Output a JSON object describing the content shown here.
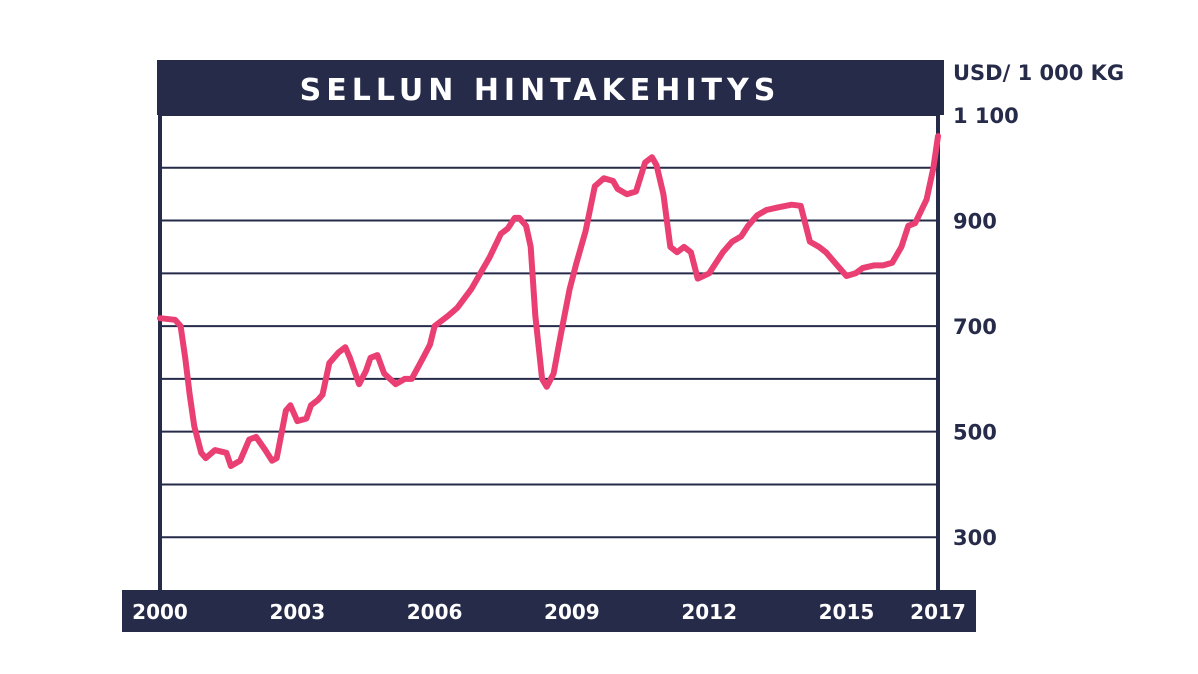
{
  "chart_data": {
    "type": "line",
    "title": "SELLUN HINTAKEHITYS",
    "ylabel": "USD/ 1 000 KG",
    "xlabel": "",
    "xlim": [
      2000,
      2017
    ],
    "ylim": [
      200,
      1100
    ],
    "y_gridlines": [
      300,
      400,
      500,
      600,
      700,
      800,
      900,
      1000,
      1100
    ],
    "y_tick_labels": [
      {
        "value": 1100,
        "label": "1 100"
      },
      {
        "value": 900,
        "label": "900"
      },
      {
        "value": 700,
        "label": "700"
      },
      {
        "value": 500,
        "label": "500"
      },
      {
        "value": 300,
        "label": "300"
      }
    ],
    "x_tick_labels": [
      {
        "value": 2000,
        "label": "2000"
      },
      {
        "value": 2003,
        "label": "2003"
      },
      {
        "value": 2006,
        "label": "2006"
      },
      {
        "value": 2009,
        "label": "2009"
      },
      {
        "value": 2012,
        "label": "2012"
      },
      {
        "value": 2015,
        "label": "2015"
      },
      {
        "value": 2017,
        "label": "2017"
      }
    ],
    "grid": true,
    "legend": false,
    "line_color": "#ea3f73",
    "series": [
      {
        "x": [
          2000.0,
          2000.33,
          2000.45,
          2000.55,
          2000.65,
          2000.75,
          2000.9,
          2001.0,
          2001.2,
          2001.45,
          2001.55,
          2001.75,
          2001.95,
          2002.1,
          2002.3,
          2002.45,
          2002.55,
          2002.75,
          2002.85,
          2003.0,
          2003.2,
          2003.3,
          2003.45,
          2003.55,
          2003.7,
          2003.9,
          2004.05,
          2004.15,
          2004.35,
          2004.5,
          2004.6,
          2004.75,
          2004.9,
          2005.15,
          2005.35,
          2005.5,
          2005.75,
          2005.9,
          2006.0,
          2006.3,
          2006.5,
          2006.8,
          2007.0,
          2007.2,
          2007.45,
          2007.6,
          2007.75,
          2007.85,
          2008.0,
          2008.1,
          2008.2,
          2008.35,
          2008.45,
          2008.6,
          2008.75,
          2008.95,
          2009.1,
          2009.3,
          2009.5,
          2009.7,
          2009.9,
          2010.0,
          2010.2,
          2010.4,
          2010.6,
          2010.75,
          2010.85,
          2011.0,
          2011.15,
          2011.3,
          2011.45,
          2011.6,
          2011.75,
          2012.0,
          2012.15,
          2012.3,
          2012.5,
          2012.7,
          2012.85,
          2013.05,
          2013.25,
          2013.5,
          2013.8,
          2014.0,
          2014.2,
          2014.4,
          2014.55,
          2014.75,
          2015.0,
          2015.2,
          2015.35,
          2015.6,
          2015.8,
          2016.0,
          2016.2,
          2016.35,
          2016.5,
          2016.75,
          2016.9,
          2017.0
        ],
        "y": [
          715,
          712,
          700,
          640,
          570,
          510,
          460,
          450,
          465,
          460,
          435,
          445,
          485,
          490,
          465,
          445,
          450,
          540,
          550,
          520,
          525,
          550,
          560,
          570,
          630,
          650,
          660,
          640,
          590,
          615,
          640,
          645,
          610,
          590,
          600,
          600,
          640,
          665,
          700,
          720,
          735,
          770,
          800,
          830,
          875,
          885,
          905,
          905,
          890,
          850,
          720,
          600,
          585,
          610,
          680,
          770,
          820,
          880,
          965,
          980,
          975,
          960,
          950,
          955,
          1010,
          1020,
          1005,
          950,
          850,
          840,
          850,
          840,
          790,
          800,
          820,
          840,
          860,
          870,
          890,
          910,
          920,
          925,
          930,
          928,
          860,
          850,
          840,
          820,
          795,
          800,
          810,
          815,
          815,
          820,
          850,
          890,
          895,
          940,
          1000,
          1060
        ]
      }
    ]
  }
}
